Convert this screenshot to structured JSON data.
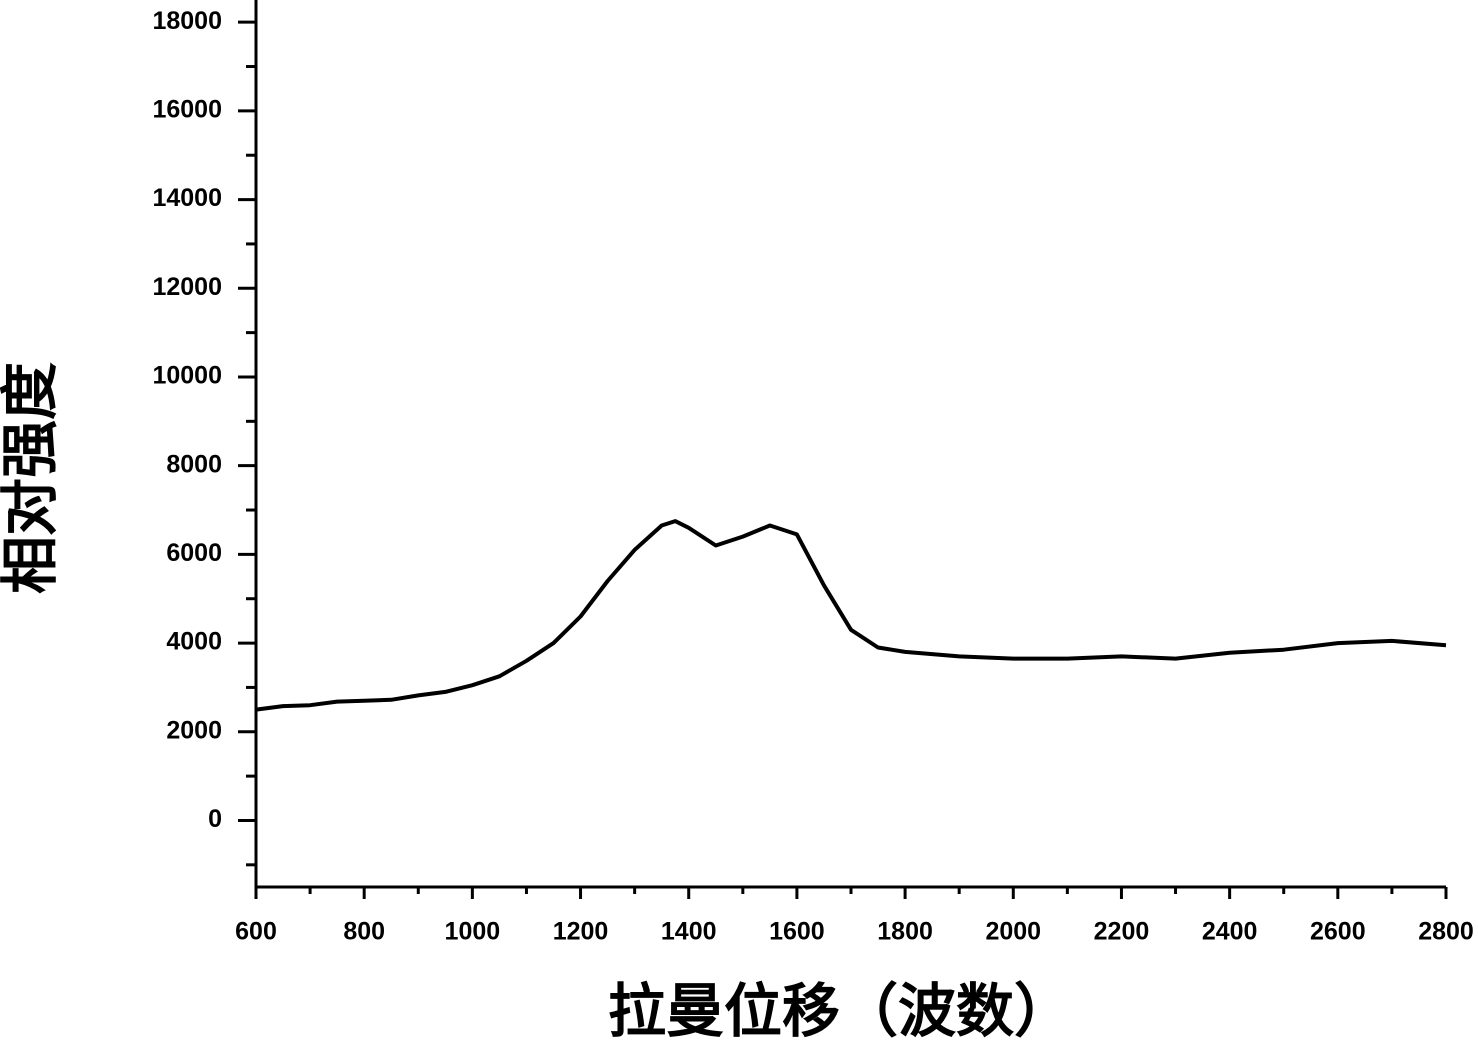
{
  "chart_data": {
    "type": "line",
    "xlabel": "拉曼位移（波数）",
    "ylabel": "相对强度",
    "x": [
      600,
      650,
      700,
      750,
      800,
      850,
      900,
      950,
      1000,
      1050,
      1100,
      1150,
      1200,
      1250,
      1300,
      1350,
      1375,
      1400,
      1450,
      1500,
      1550,
      1600,
      1650,
      1700,
      1750,
      1800,
      1900,
      2000,
      2100,
      2200,
      2300,
      2400,
      2500,
      2600,
      2700,
      2800
    ],
    "series": [
      {
        "color": "#000000",
        "values": [
          2500,
          2580,
          2600,
          2680,
          2700,
          2720,
          2820,
          2900,
          3050,
          3250,
          3600,
          4000,
          4600,
          5400,
          6100,
          6650,
          6750,
          6600,
          6200,
          6400,
          6650,
          6450,
          5300,
          4300,
          3900,
          3800,
          3700,
          3650,
          3650,
          3700,
          3650,
          3780,
          3850,
          4000,
          4050,
          3950
        ]
      }
    ],
    "xlim": [
      600,
      2800
    ],
    "ylim": [
      -1500,
      18500
    ],
    "xticks": [
      600,
      800,
      1000,
      1200,
      1400,
      1600,
      1800,
      2000,
      2200,
      2400,
      2600,
      2800
    ],
    "yticks": [
      0,
      2000,
      4000,
      6000,
      8000,
      10000,
      12000,
      14000,
      16000,
      18000
    ],
    "grid": false
  }
}
